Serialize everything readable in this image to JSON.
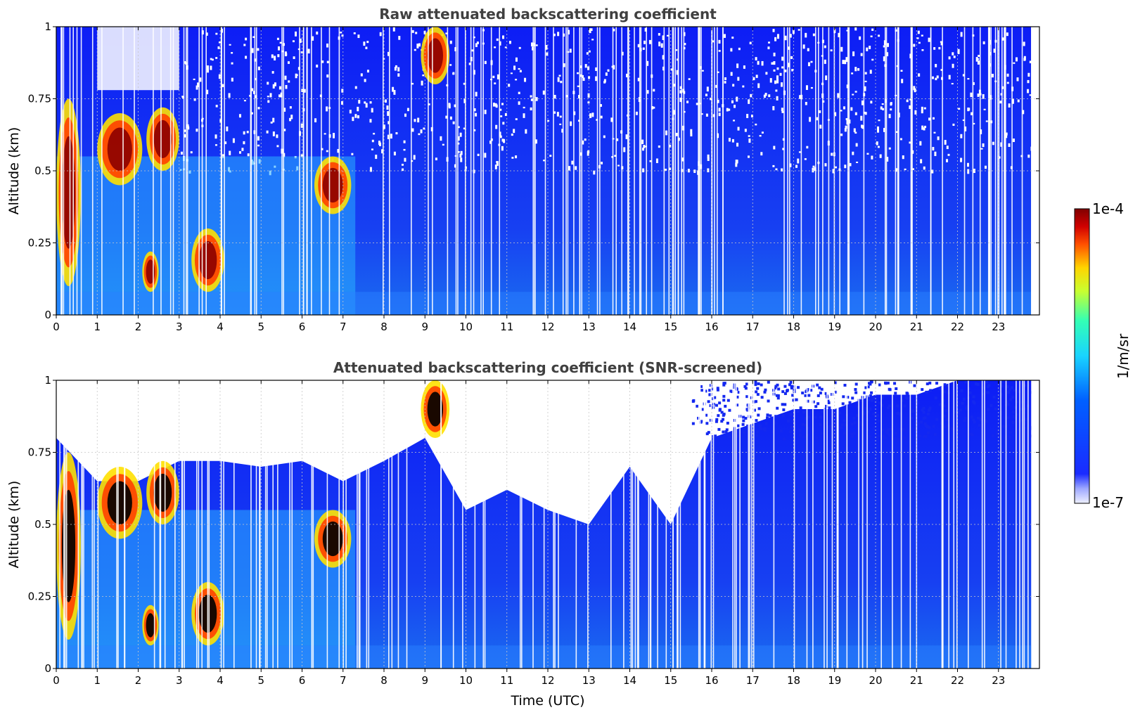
{
  "chart_data": [
    {
      "type": "heatmap",
      "title": "Raw attenuated backscattering coefficient",
      "xlabel": "",
      "ylabel": "Altitude (km)",
      "xlim": [
        0,
        24
      ],
      "ylim": [
        0,
        1
      ],
      "xticks": [
        "0",
        "1",
        "2",
        "3",
        "4",
        "5",
        "6",
        "7",
        "8",
        "9",
        "10",
        "11",
        "12",
        "13",
        "14",
        "15",
        "16",
        "17",
        "18",
        "19",
        "20",
        "21",
        "22",
        "23"
      ],
      "yticks": [
        "0",
        "0.25",
        "0.5",
        "0.75",
        "1"
      ],
      "grid": true,
      "features": [
        {
          "kind": "high-backscatter cloud",
          "t_start": 0.0,
          "t_end": 0.6,
          "alt_low": 0.1,
          "alt_high": 0.75
        },
        {
          "kind": "high-backscatter cloud",
          "t_start": 1.0,
          "t_end": 2.1,
          "alt_low": 0.45,
          "alt_high": 0.7
        },
        {
          "kind": "high-backscatter cloud",
          "t_start": 2.2,
          "t_end": 3.0,
          "alt_low": 0.5,
          "alt_high": 0.72
        },
        {
          "kind": "high-backscatter cloud",
          "t_start": 2.1,
          "t_end": 2.5,
          "alt_low": 0.08,
          "alt_high": 0.22
        },
        {
          "kind": "high-backscatter cloud",
          "t_start": 3.3,
          "t_end": 4.1,
          "alt_low": 0.08,
          "alt_high": 0.3
        },
        {
          "kind": "high-backscatter cloud",
          "t_start": 6.3,
          "t_end": 7.2,
          "alt_low": 0.35,
          "alt_high": 0.55
        },
        {
          "kind": "high-backscatter cloud",
          "t_start": 8.9,
          "t_end": 9.6,
          "alt_low": 0.8,
          "alt_high": 1.0
        }
      ]
    },
    {
      "type": "heatmap",
      "title": "Attenuated backscattering coefficient (SNR-screened)",
      "xlabel": "Time (UTC)",
      "ylabel": "Altitude (km)",
      "xlim": [
        0,
        24
      ],
      "ylim": [
        0,
        1
      ],
      "xticks": [
        "0",
        "1",
        "2",
        "3",
        "4",
        "5",
        "6",
        "7",
        "8",
        "9",
        "10",
        "11",
        "12",
        "13",
        "14",
        "15",
        "16",
        "17",
        "18",
        "19",
        "20",
        "21",
        "22",
        "23"
      ],
      "yticks": [
        "0",
        "0.25",
        "0.5",
        "0.75",
        "1"
      ],
      "grid": true,
      "screened_top_km": [
        [
          0.0,
          0.8
        ],
        [
          1.0,
          0.65
        ],
        [
          2.0,
          0.65
        ],
        [
          3.0,
          0.72
        ],
        [
          4.0,
          0.72
        ],
        [
          5.0,
          0.7
        ],
        [
          6.0,
          0.72
        ],
        [
          7.0,
          0.65
        ],
        [
          8.0,
          0.72
        ],
        [
          9.0,
          0.8
        ],
        [
          10.0,
          0.55
        ],
        [
          11.0,
          0.62
        ],
        [
          12.0,
          0.55
        ],
        [
          13.0,
          0.5
        ],
        [
          14.0,
          0.7
        ],
        [
          15.0,
          0.5
        ],
        [
          16.0,
          0.8
        ],
        [
          17.0,
          0.85
        ],
        [
          18.0,
          0.9
        ],
        [
          19.0,
          0.9
        ],
        [
          20.0,
          0.95
        ],
        [
          21.0,
          0.95
        ],
        [
          22.0,
          1.0
        ],
        [
          23.0,
          1.0
        ],
        [
          23.8,
          1.0
        ]
      ]
    }
  ],
  "colorbar": {
    "label": "1/m/sr",
    "max_label": "1e-4",
    "min_label": "1e-7",
    "colormap": "jet",
    "scale": "log",
    "range": [
      1e-07,
      0.0001
    ]
  }
}
